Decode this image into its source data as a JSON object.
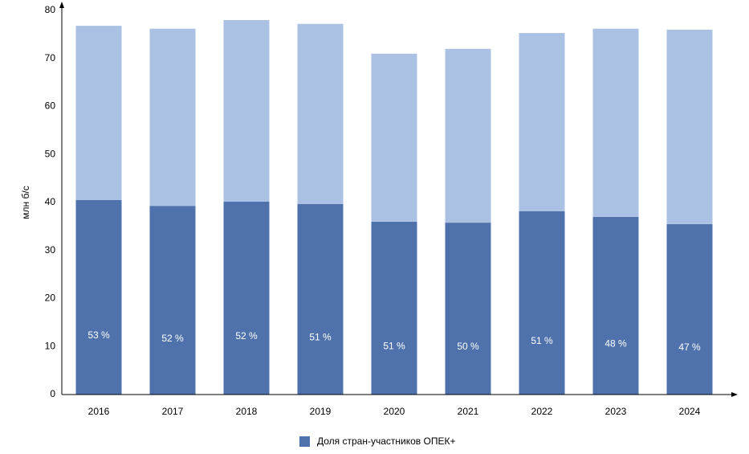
{
  "chart_data": {
    "type": "stacked_bar",
    "y_label": "млн б/с",
    "categories": [
      "2016",
      "2017",
      "2018",
      "2019",
      "2020",
      "2021",
      "2022",
      "2023",
      "2024"
    ],
    "series": [
      {
        "name": "Доля стран-участников ОПЕК+",
        "color": "#4f72ac",
        "values": [
          40.5,
          39.3,
          40.2,
          39.7,
          36.0,
          35.8,
          38.2,
          37.0,
          35.5
        ]
      },
      {
        "color": "#abc1e3",
        "values": [
          36.3,
          36.9,
          37.8,
          37.5,
          35.0,
          36.2,
          37.1,
          39.2,
          40.5
        ]
      }
    ],
    "shares": {
      "values": [
        53,
        52,
        52,
        51,
        51,
        50,
        51,
        48,
        47
      ],
      "labels": [
        "53 %",
        "52 %",
        "52 %",
        "51 %",
        "51 %",
        "50 %",
        "51 %",
        "48 %",
        "47 %"
      ]
    },
    "ylim": [
      0,
      80
    ],
    "yticks": [
      0,
      10,
      20,
      30,
      40,
      50,
      60,
      70,
      80
    ],
    "grid": false,
    "legend": "bottom"
  }
}
